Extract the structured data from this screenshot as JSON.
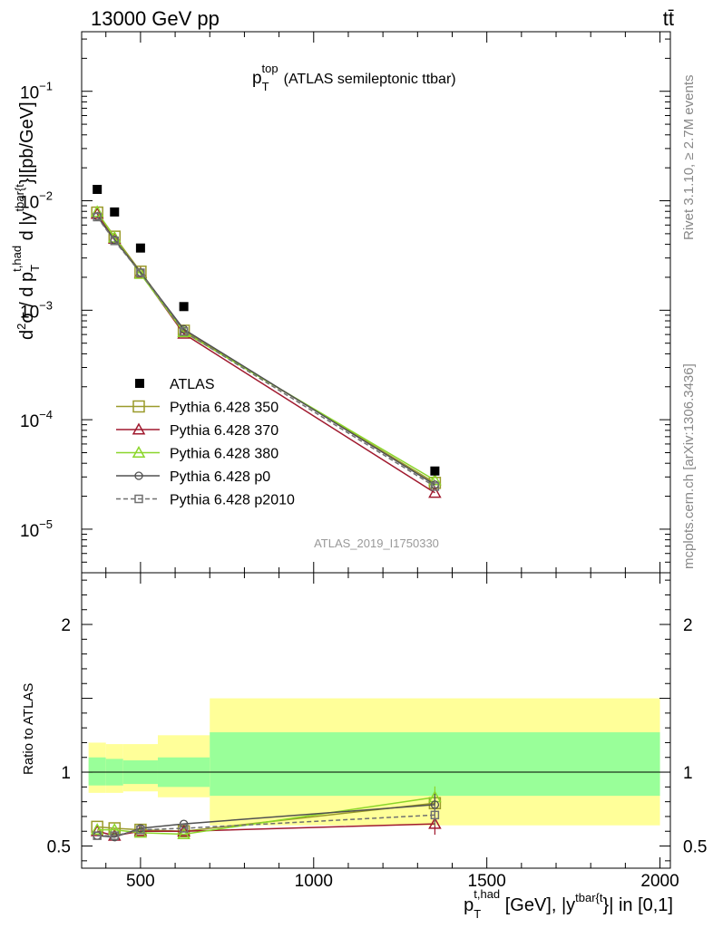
{
  "header": {
    "left": "13000 GeV pp",
    "right": "tt̄"
  },
  "side_labels": {
    "rivet": "Rivet 3.1.10, ≥ 2.7M events",
    "mcplots": "mcplots.cern.ch [arXiv:1306.3436]"
  },
  "plot_title": {
    "p": "p",
    "sub": "T",
    "sup": "top",
    "rest": "(ATLAS semileptonic ttbar)"
  },
  "watermark": "ATLAS_2019_I1750330",
  "y_axis_label": {
    "d2": "d",
    "sup2": "2",
    "sigma_over": "σ / d p",
    "sub_T": "T",
    "sup_thad": "t,had",
    "dy": " d |y",
    "sup_tbar": "tbar{t",
    "units": "}|[pb/GeV]"
  },
  "x_axis_label": {
    "p": "p",
    "sub_T": "T",
    "sup_thad": "t,had",
    "mid": " [GeV], |y",
    "sup_tbar": "tbar{t",
    "end": "}| in [0,1]"
  },
  "ratio_ylabel": "Ratio to ATLAS",
  "colors": {
    "atlas": "#000000",
    "p350": "#9a9a2a",
    "p370": "#a0192e",
    "p380": "#8bd62a",
    "p0": "#505050",
    "p2010": "#707070",
    "band_green": "#99ff99",
    "band_yellow": "#ffff99"
  },
  "chart_data": {
    "type": "scatter",
    "main": {
      "yscale": "log",
      "ylim": [
        4e-06,
        0.35
      ],
      "y_ticks": [
        {
          "v": 0.1,
          "label": "10",
          "exp": "−1"
        },
        {
          "v": 0.01,
          "label": "10",
          "exp": "−2"
        },
        {
          "v": 0.001,
          "label": "10",
          "exp": "−3"
        },
        {
          "v": 0.0001,
          "label": "10",
          "exp": "−4"
        },
        {
          "v": 1e-05,
          "label": "10",
          "exp": "−5"
        }
      ]
    },
    "ratio": {
      "ylim": [
        0.35,
        2.35
      ],
      "y_ticks": [
        0.5,
        1,
        2
      ],
      "y_tick_labels": [
        "0.5",
        "1",
        "2"
      ]
    },
    "xlim": [
      330,
      2030
    ],
    "x_ticks": [
      500,
      1000,
      1500,
      2000
    ],
    "x_tick_labels": [
      "500",
      "1000",
      "1500",
      "2000"
    ],
    "bins": [
      [
        350,
        400
      ],
      [
        400,
        450
      ],
      [
        450,
        550
      ],
      [
        550,
        700
      ],
      [
        700,
        2000
      ]
    ],
    "x": [
      375,
      425,
      500,
      625,
      1350
    ],
    "atlas": [
      0.0127,
      0.0079,
      0.0037,
      0.00108,
      3.4e-05
    ],
    "band_inner": [
      [
        0.91,
        1.1
      ],
      [
        0.91,
        1.09
      ],
      [
        0.92,
        1.08
      ],
      [
        0.9,
        1.1
      ],
      [
        0.84,
        1.27
      ]
    ],
    "band_outer": [
      [
        0.86,
        1.2
      ],
      [
        0.86,
        1.19
      ],
      [
        0.87,
        1.19
      ],
      [
        0.83,
        1.25
      ],
      [
        0.64,
        1.5
      ]
    ],
    "series": [
      {
        "name": "Pythia 6.428 350",
        "key": "p350",
        "marker": "square",
        "dash": "",
        "size": 6,
        "values": [
          0.0078,
          0.0047,
          0.00225,
          0.00065,
          2.65e-05
        ],
        "ratio": [
          0.63,
          0.62,
          0.61,
          0.6,
          0.79
        ]
      },
      {
        "name": "Pythia 6.428 370",
        "key": "p370",
        "marker": "triangle",
        "dash": "",
        "size": 6,
        "values": [
          0.0076,
          0.0045,
          0.00218,
          0.00061,
          2.15e-05
        ],
        "ratio": [
          0.6,
          0.57,
          0.6,
          0.6,
          0.65
        ]
      },
      {
        "name": "Pythia 6.428 380",
        "key": "p380",
        "marker": "triangle",
        "dash": "",
        "size": 6,
        "values": [
          0.0079,
          0.0046,
          0.00215,
          0.00063,
          2.8e-05
        ],
        "ratio": [
          0.61,
          0.61,
          0.59,
          0.58,
          0.83
        ]
      },
      {
        "name": "Pythia 6.428 p0",
        "key": "p0",
        "marker": "circle",
        "dash": "",
        "size": 4,
        "values": [
          0.0072,
          0.0044,
          0.00222,
          0.00067,
          2.55e-05
        ],
        "ratio": [
          0.57,
          0.56,
          0.62,
          0.65,
          0.78
        ]
      },
      {
        "name": "Pythia 6.428 p2010",
        "key": "p2010",
        "marker": "square",
        "dash": "5,3",
        "size": 4,
        "values": [
          0.0071,
          0.0043,
          0.0022,
          0.00064,
          2.45e-05
        ],
        "ratio": [
          0.57,
          0.57,
          0.61,
          0.62,
          0.71
        ]
      }
    ],
    "legend": {
      "data_label": "ATLAS",
      "placement": "bottom-left"
    }
  }
}
